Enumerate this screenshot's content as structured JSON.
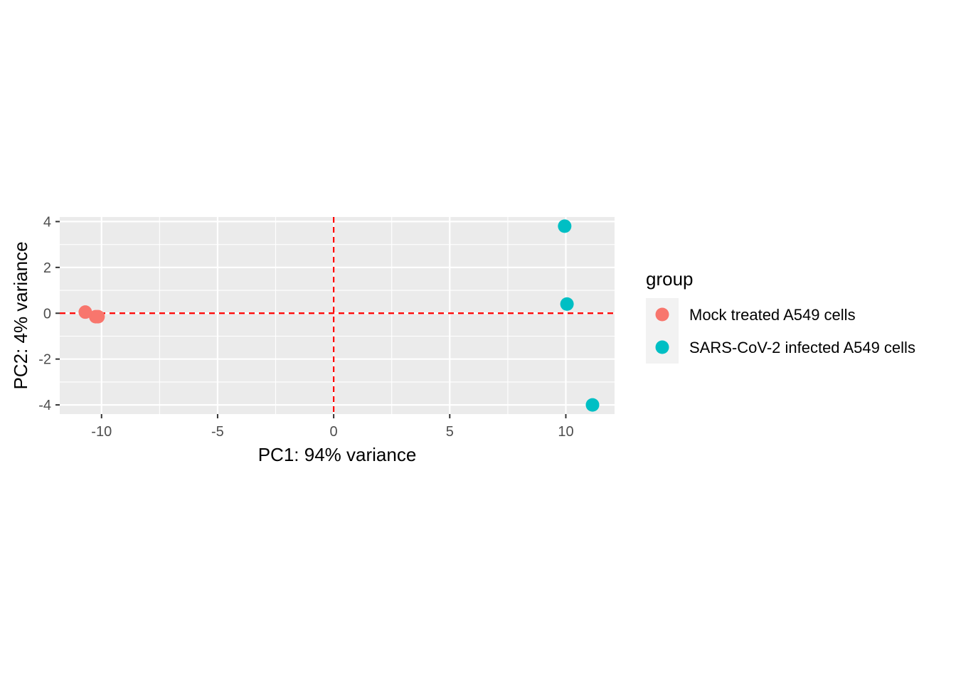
{
  "chart_data": {
    "type": "scatter",
    "title": "",
    "xlabel": "PC1: 94% variance",
    "ylabel": "PC2: 4% variance",
    "xlim": [
      -11.8,
      12.1
    ],
    "ylim": [
      -4.4,
      4.2
    ],
    "x_ticks": [
      -10,
      -5,
      0,
      5,
      10
    ],
    "x_tick_labels": [
      "-10",
      "-5",
      "0",
      "5",
      "10"
    ],
    "y_ticks": [
      -4,
      -2,
      0,
      2,
      4
    ],
    "y_tick_labels": [
      "-4",
      "-2",
      "0",
      "2",
      "4"
    ],
    "grid": true,
    "reference_lines": {
      "x": 0,
      "y": 0,
      "color": "#ff0000",
      "style": "dashed"
    },
    "legend": {
      "title": "group",
      "position": "right",
      "entries": [
        {
          "label": "Mock treated A549 cells",
          "color": "#F8766D"
        },
        {
          "label": "SARS-CoV-2 infected A549 cells",
          "color": "#00BFC4"
        }
      ]
    },
    "series": [
      {
        "name": "Mock treated A549 cells",
        "color": "#F8766D",
        "points": [
          {
            "x": -10.7,
            "y": 0.05
          },
          {
            "x": -10.25,
            "y": -0.15
          },
          {
            "x": -10.15,
            "y": -0.15
          }
        ]
      },
      {
        "name": "SARS-CoV-2 infected A549 cells",
        "color": "#00BFC4",
        "points": [
          {
            "x": 9.95,
            "y": 3.8
          },
          {
            "x": 10.05,
            "y": 0.4
          },
          {
            "x": 11.15,
            "y": -4.0
          }
        ]
      }
    ]
  }
}
